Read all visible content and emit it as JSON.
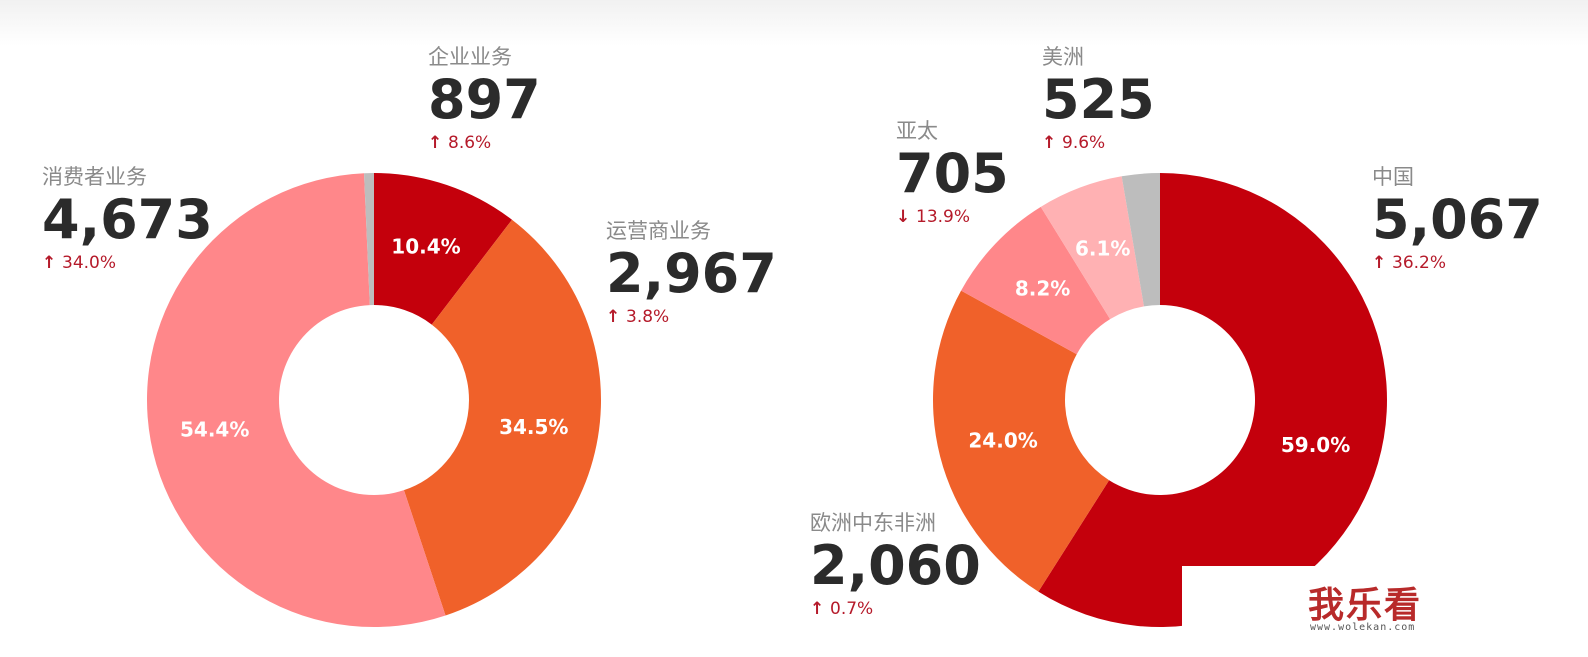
{
  "chart_data": [
    {
      "type": "pie",
      "categories": [
        "企业业务",
        "运营商业务",
        "消费者业务",
        ""
      ],
      "values": [
        10.4,
        34.5,
        54.4,
        0.7
      ],
      "slice_labels": [
        "10.4%",
        "34.5%",
        "54.4%",
        ""
      ],
      "colors": [
        "#c4000c",
        "#f0612a",
        "#ff878a",
        "#bdbdbd"
      ],
      "callouts": [
        {
          "name": "企业业务",
          "value": "897",
          "change": "8.6%",
          "direction": "up"
        },
        {
          "name": "运营商业务",
          "value": "2,967",
          "change": "3.8%",
          "direction": "up"
        },
        {
          "name": "消费者业务",
          "value": "4,673",
          "change": "34.0%",
          "direction": "up"
        }
      ]
    },
    {
      "type": "pie",
      "categories": [
        "中国",
        "欧洲中东非洲",
        "亚太",
        "美洲",
        ""
      ],
      "values": [
        59.0,
        24.0,
        8.2,
        6.1,
        2.7
      ],
      "slice_labels": [
        "59.0%",
        "24.0%",
        "8.2%",
        "6.1%",
        ""
      ],
      "colors": [
        "#c4000c",
        "#f0612a",
        "#ff878a",
        "#ffb1b3",
        "#bdbdbd"
      ],
      "callouts": [
        {
          "name": "美洲",
          "value": "525",
          "change": "9.6%",
          "direction": "up"
        },
        {
          "name": "亚太",
          "value": "705",
          "change": "13.9%",
          "direction": "down"
        },
        {
          "name": "中国",
          "value": "5,067",
          "change": "36.2%",
          "direction": "up"
        },
        {
          "name": "欧洲中东非洲",
          "value": "2,060",
          "change": "0.7%",
          "direction": "up"
        }
      ]
    }
  ],
  "watermark": {
    "text": "我乐看",
    "url": "www.wolekan.com"
  }
}
